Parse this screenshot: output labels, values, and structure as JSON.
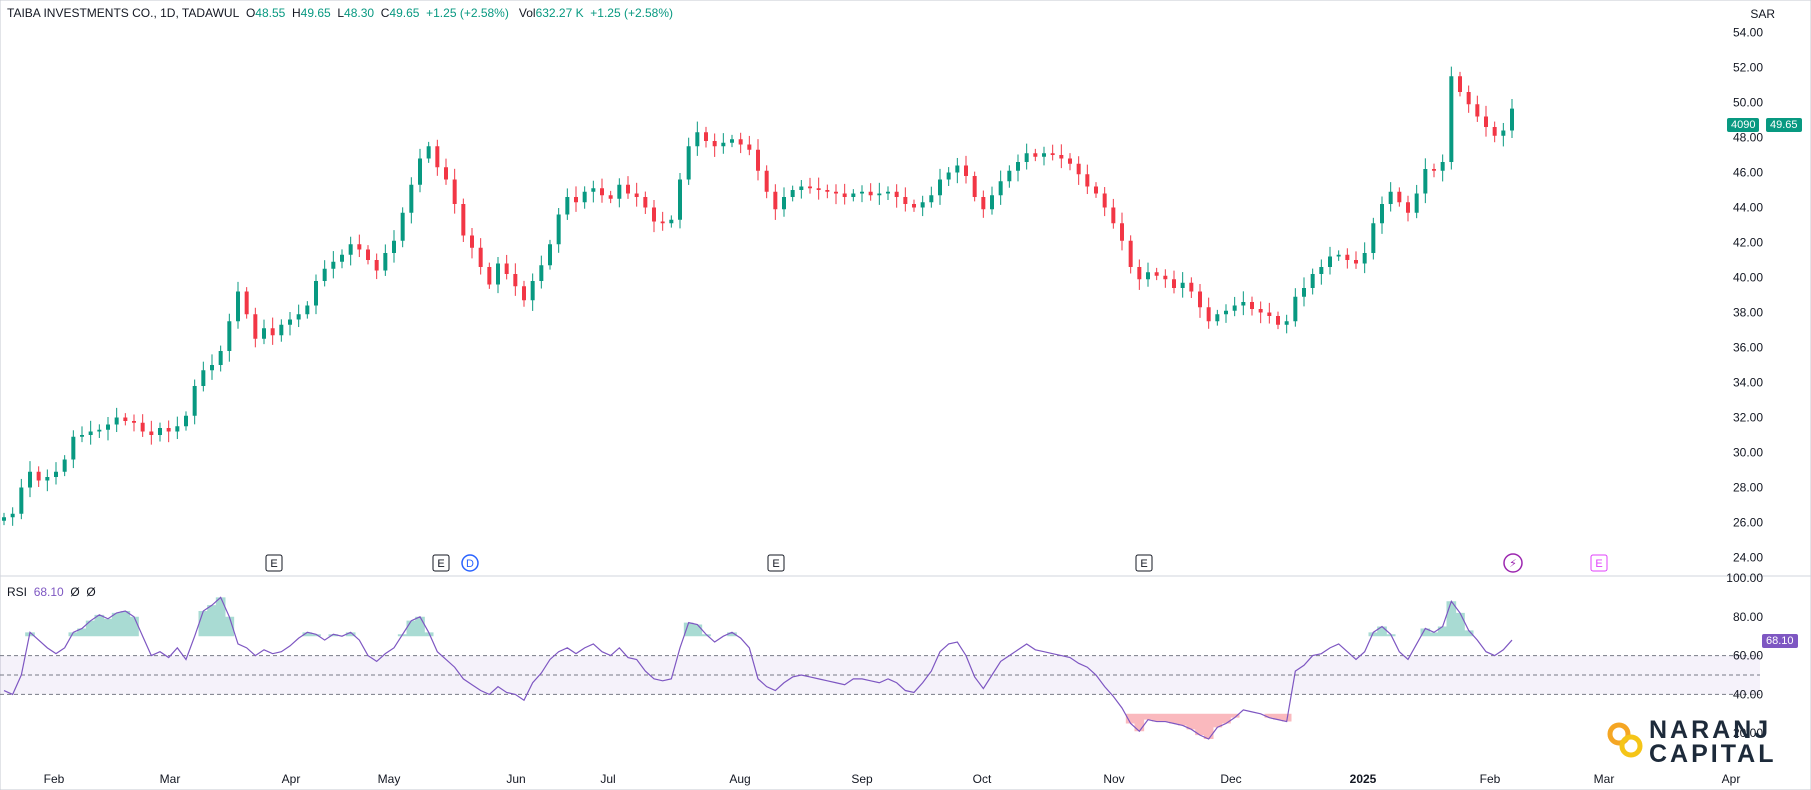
{
  "header": {
    "symbol": "TAIBA INVESTMENTS CO., 1D, TADAWUL",
    "o_label": "O",
    "o": "48.55",
    "h_label": "H",
    "h": "49.65",
    "l_label": "L",
    "l": "48.30",
    "c_label": "C",
    "c": "49.65",
    "change": "+1.25 (+2.58%)",
    "vol_label": "Vol",
    "vol": "632.27 K",
    "vol_change": "+1.25 (+2.58%)"
  },
  "currency": "SAR",
  "rsi_header": {
    "label": "RSI",
    "value": "68.10",
    "p1": "Ø",
    "p2": "Ø"
  },
  "price_tags": {
    "left": "4090",
    "right": "49.65"
  },
  "rsi_tag": "68.10",
  "logo": {
    "line1": "NARANJ",
    "line2": "CAPITAL"
  },
  "colors": {
    "up": "#089981",
    "down": "#f23645",
    "rsi": "#7e57c2",
    "band": "#7e57c2",
    "event": "#9c27b0"
  },
  "chart_data": [
    {
      "type": "candlestick",
      "ylim": [
        23,
        55
      ],
      "y_ticks": [
        "24.00",
        "26.00",
        "28.00",
        "30.00",
        "32.00",
        "34.00",
        "36.00",
        "38.00",
        "40.00",
        "42.00",
        "44.00",
        "46.00",
        "48.00",
        "50.00",
        "52.00",
        "54.00"
      ],
      "x_ticks": [
        "Feb",
        "Mar",
        "Apr",
        "May",
        "Jun",
        "Jul",
        "Aug",
        "Sep",
        "Oct",
        "Nov",
        "Dec",
        "2025",
        "Feb",
        "Mar",
        "Apr"
      ],
      "events": [
        {
          "label": "E",
          "date_index": "early-Apr"
        },
        {
          "label": "E",
          "date_index": "early-May"
        },
        {
          "label": "D",
          "date_index": "early-May"
        },
        {
          "label": "E",
          "date_index": "late-Jul"
        },
        {
          "label": "E",
          "date_index": "late-Oct"
        },
        {
          "label": "⚡",
          "date_index": "early-Feb-2025"
        },
        {
          "label": "E",
          "date_index": "late-Feb-2025"
        }
      ],
      "close": [
        26.3,
        26.5,
        28.0,
        28.9,
        28.4,
        28.6,
        28.9,
        29.6,
        30.9,
        31.0,
        31.2,
        31.3,
        31.6,
        32.0,
        31.8,
        31.7,
        31.2,
        31.0,
        31.4,
        31.2,
        31.5,
        32.1,
        33.8,
        34.7,
        35.0,
        35.8,
        37.5,
        39.2,
        37.9,
        36.5,
        37.1,
        36.7,
        37.3,
        37.6,
        37.9,
        38.4,
        39.8,
        40.5,
        40.9,
        41.3,
        41.9,
        41.6,
        41.0,
        40.4,
        41.4,
        42.1,
        43.7,
        45.3,
        46.8,
        47.5,
        46.3,
        45.6,
        44.2,
        42.4,
        41.7,
        40.6,
        39.6,
        40.8,
        40.2,
        39.5,
        38.7,
        39.8,
        40.7,
        41.9,
        43.6,
        44.6,
        44.3,
        44.9,
        45.1,
        44.7,
        44.5,
        45.3,
        44.8,
        44.6,
        44.0,
        43.2,
        43.1,
        43.3,
        45.6,
        47.5,
        48.3,
        47.8,
        47.5,
        47.7,
        47.9,
        47.6,
        47.3,
        46.1,
        44.9,
        43.9,
        44.6,
        45.0,
        45.2,
        45.1,
        45.0,
        44.9,
        44.8,
        44.6,
        44.8,
        44.9,
        44.7,
        44.8,
        44.9,
        44.6,
        44.2,
        44.0,
        44.3,
        44.7,
        45.6,
        46.0,
        46.4,
        45.8,
        44.6,
        43.9,
        44.7,
        45.5,
        46.1,
        46.6,
        47.1,
        46.9,
        47.1,
        47.0,
        46.8,
        46.5,
        45.9,
        45.2,
        44.8,
        44.0,
        43.1,
        42.1,
        40.6,
        39.9,
        40.3,
        40.1,
        39.9,
        39.4,
        39.7,
        39.2,
        38.3,
        37.5,
        37.9,
        38.1,
        38.4,
        38.6,
        38.2,
        38.0,
        37.8,
        37.3,
        37.5,
        38.9,
        39.4,
        40.2,
        40.6,
        41.2,
        41.3,
        41.0,
        40.8,
        41.4,
        43.1,
        44.2,
        44.9,
        44.3,
        43.7,
        44.8,
        46.2,
        46.1,
        46.6,
        51.5,
        50.6,
        49.9,
        49.2,
        48.6,
        48.1,
        48.4,
        49.65
      ],
      "open_close_note": "close values sampled per trading day; open = previous close"
    },
    {
      "type": "line",
      "name": "RSI",
      "ylim": [
        0,
        100
      ],
      "y_ticks": [
        "20.00",
        "40.00",
        "60.00",
        "80.00",
        "100.00"
      ],
      "bands": [
        40,
        50,
        60
      ],
      "values": [
        42,
        40,
        50,
        72,
        68,
        64,
        61,
        64,
        72,
        74,
        78,
        81,
        79,
        82,
        83,
        80,
        70,
        60,
        62,
        59,
        64,
        58,
        70,
        83,
        86,
        90,
        80,
        66,
        64,
        60,
        63,
        61,
        62,
        65,
        69,
        72,
        71,
        68,
        71,
        70,
        72,
        68,
        60,
        57,
        61,
        64,
        71,
        78,
        80,
        72,
        62,
        58,
        54,
        48,
        45,
        42,
        40,
        44,
        41,
        40,
        37,
        46,
        51,
        58,
        62,
        64,
        61,
        64,
        66,
        62,
        60,
        64,
        59,
        58,
        52,
        48,
        47,
        48,
        64,
        77,
        76,
        71,
        67,
        70,
        72,
        69,
        64,
        48,
        44,
        42,
        46,
        49,
        50,
        49,
        48,
        47,
        46,
        45,
        48,
        48,
        47,
        46,
        48,
        46,
        42,
        41,
        46,
        52,
        62,
        66,
        67,
        60,
        49,
        43,
        50,
        57,
        60,
        63,
        66,
        63,
        62,
        61,
        60,
        59,
        56,
        54,
        50,
        44,
        39,
        33,
        25,
        21,
        27,
        26,
        26,
        25,
        24,
        22,
        19,
        17,
        23,
        25,
        28,
        32,
        31,
        30,
        28,
        27,
        26,
        52,
        55,
        60,
        61,
        64,
        66,
        62,
        58,
        62,
        72,
        75,
        71,
        62,
        58,
        66,
        74,
        72,
        75,
        88,
        82,
        73,
        68,
        62,
        60,
        63,
        68
      ]
    }
  ]
}
